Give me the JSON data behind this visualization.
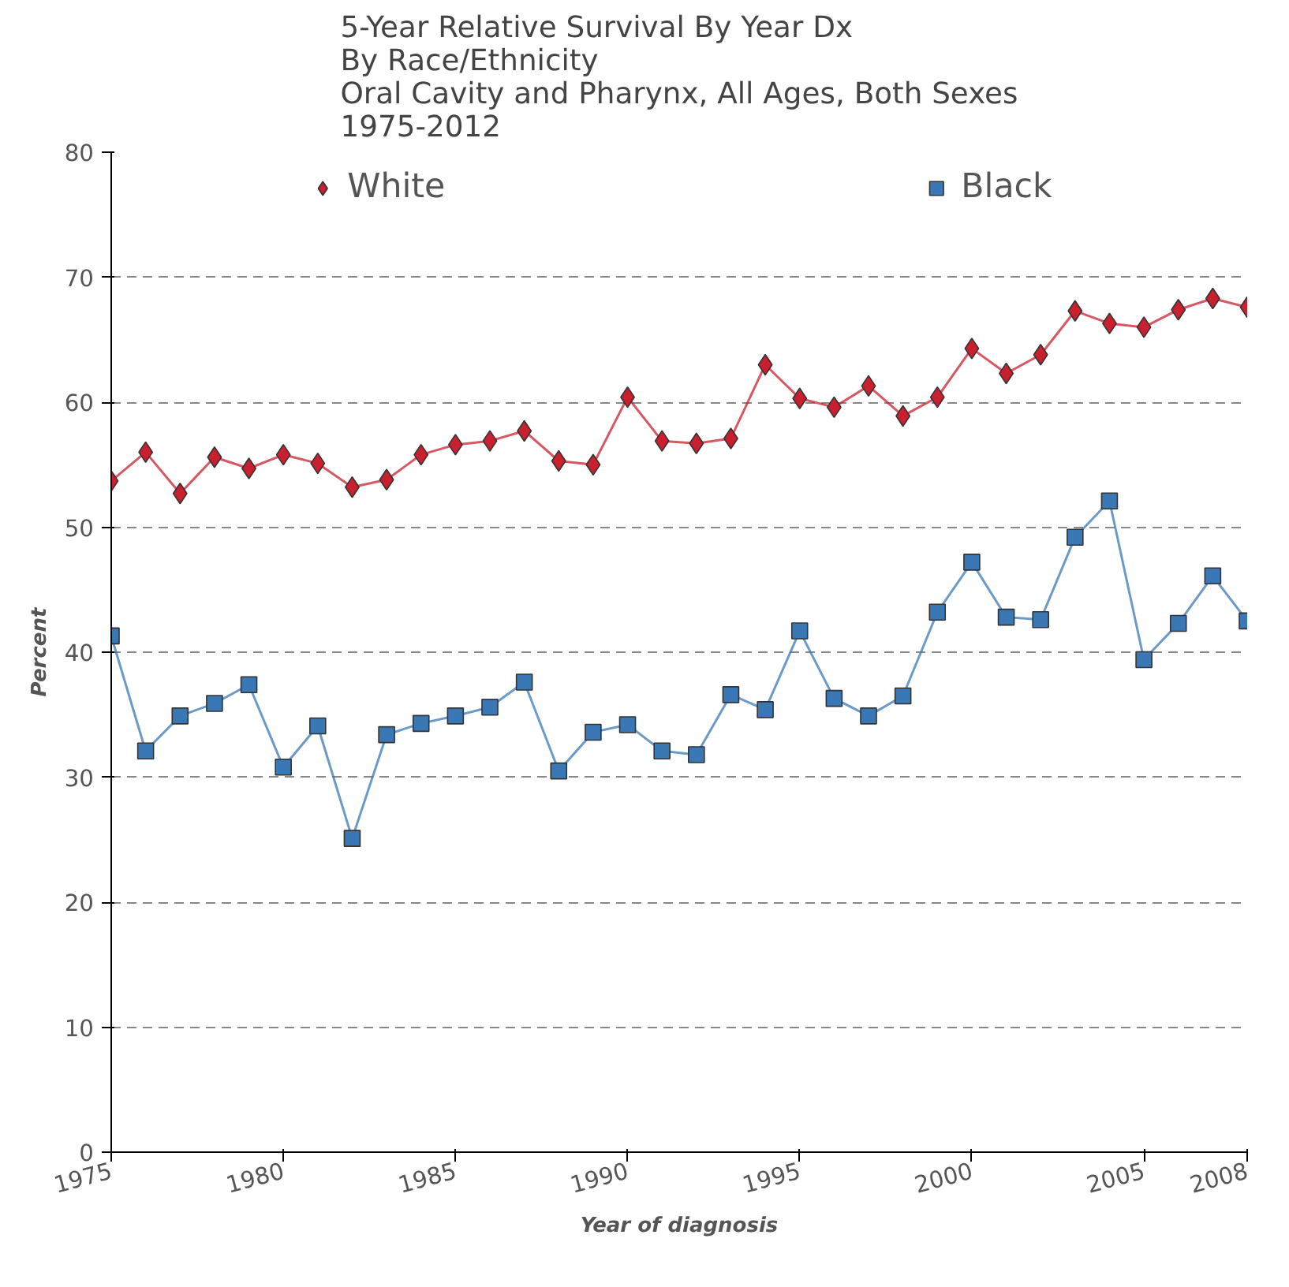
{
  "chart_data": {
    "type": "line",
    "title": "5-Year Relative Survival By Year Dx\nBy Race/Ethnicity\nOral Cavity and Pharynx, All Ages, Both Sexes\n1975-2012",
    "xlabel": "Year of diagnosis",
    "ylabel": "Percent",
    "x": [
      1975,
      1976,
      1977,
      1978,
      1979,
      1980,
      1981,
      1982,
      1983,
      1984,
      1985,
      1986,
      1987,
      1988,
      1989,
      1990,
      1991,
      1992,
      1993,
      1994,
      1995,
      1996,
      1997,
      1998,
      1999,
      2000,
      2001,
      2002,
      2003,
      2004,
      2005,
      2006,
      2007,
      2008
    ],
    "series": [
      {
        "name": "White",
        "color": "#c8202f",
        "marker": "diamond",
        "values": [
          53.7,
          56.0,
          52.7,
          55.6,
          54.7,
          55.8,
          55.1,
          53.2,
          53.8,
          55.8,
          56.6,
          56.9,
          57.7,
          55.3,
          55.0,
          60.4,
          56.9,
          56.7,
          57.1,
          63.0,
          60.3,
          59.6,
          61.3,
          58.9,
          60.4,
          64.3,
          62.3,
          63.8,
          67.3,
          66.3,
          66.0,
          67.4,
          68.3,
          67.6
        ]
      },
      {
        "name": "Black",
        "color": "#3a78b5",
        "marker": "square",
        "values": [
          41.3,
          32.1,
          34.9,
          35.9,
          37.4,
          30.8,
          34.1,
          25.1,
          33.4,
          34.3,
          34.9,
          35.6,
          37.6,
          30.5,
          33.6,
          34.2,
          32.1,
          31.8,
          36.6,
          35.4,
          41.7,
          36.3,
          34.9,
          36.5,
          43.2,
          47.2,
          42.8,
          42.6,
          49.2,
          52.1,
          39.4,
          42.3,
          46.1,
          42.5
        ]
      }
    ],
    "xlim": [
      1975,
      2008
    ],
    "xticks": [
      1975,
      1980,
      1985,
      1990,
      1995,
      2000,
      2005,
      2008
    ],
    "ylim": [
      0,
      80
    ],
    "yticks": [
      0,
      10,
      20,
      30,
      40,
      50,
      60,
      70,
      80
    ],
    "grid": "y",
    "legend": "top",
    "line_style": "solid"
  }
}
